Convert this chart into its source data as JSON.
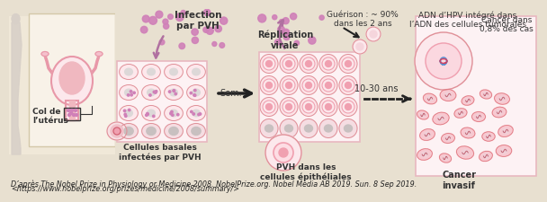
{
  "background_color": "#e8e0d0",
  "panel_bg_beige": "#e8e0d0",
  "panel_bg_white": "#f5eeea",
  "uterus_box_bg": "#f0e8d8",
  "uterus_box_border": "#d4c8a8",
  "cell_box_bg": "#fce8ec",
  "cell_box_border": "#e8b8c0",
  "caption_line1": "D’après The Nobel Prize in Physiology or Medicine 2008. NobelPrize.org. Nobel Media AB 2019. Sun. 8 Sep 2019.",
  "caption_line2": "<https://www.nobelprize.org/prizes/medicine/2008/summary/>",
  "caption_fontsize": 5.8,
  "caption_color": "#222222",
  "labels": {
    "infection": "Infection\npar PVH",
    "replication": "Réplication\nvirale",
    "guerison": "Guérison : ~ 90%\ndans les 2 ans",
    "adn": "ADN d’HPV intégré dans\nl’ADN des cellules tumorales",
    "col_uterus": "Col de\nl’utérus",
    "cellules_basales": "Cellules basales\ninfectées par PVH",
    "sem": "Sem.",
    "pvh_cellules": "PVH dans les\ncellules épithéliales",
    "10_30_ans": "10-30 ans",
    "cancer_dans": "Cancer dans\n0,8% des cas",
    "cancer_invasif": "Cancer\ninvasif"
  },
  "arrow_purple": "#b070a0",
  "arrow_black": "#222222",
  "cell_fill": "#f8d8dc",
  "cell_border": "#e09098",
  "nucleus_gray": "#c8c0c0",
  "nucleus_pink": "#f0a0b0",
  "pvh_dot": "#d080b8",
  "pvh_dot2": "#e0a0c8",
  "uterus_fill": "#fce8ec",
  "uterus_border": "#e898a8",
  "uterus_inner": "#f0b8c0",
  "body_color": "#d8d0c8",
  "cancer_cell_fill": "#f8c8d0",
  "cancer_cell_border": "#e07880"
}
